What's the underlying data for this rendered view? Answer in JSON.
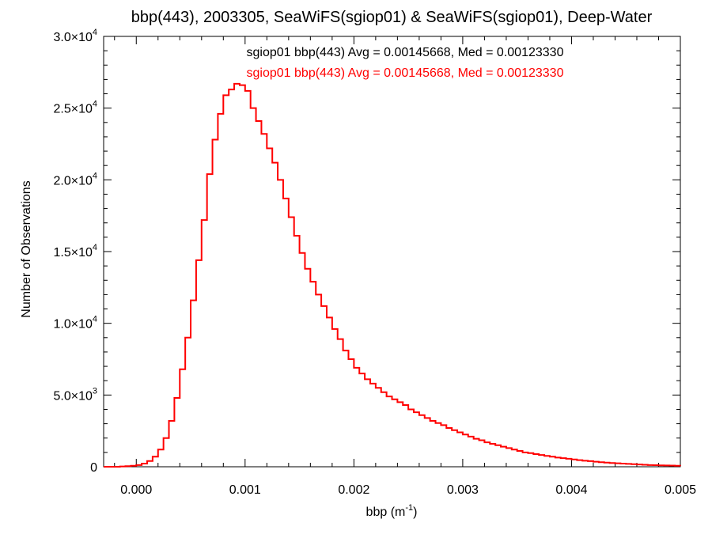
{
  "chart_data": {
    "type": "histogram-step",
    "title": "bbp(443), 2003305, SeaWiFS(sgiop01) & SeaWiFS(sgiop01), Deep-Water",
    "xlabel": {
      "main": "bbp (m",
      "superscript": "-1",
      "close": ")"
    },
    "ylabel": "Number of Observations",
    "xlim": [
      -0.0003,
      0.005
    ],
    "ylim": [
      0,
      30000
    ],
    "x_ticks": [
      {
        "value": 0.0,
        "label": "0.000"
      },
      {
        "value": 0.001,
        "label": "0.001"
      },
      {
        "value": 0.002,
        "label": "0.002"
      },
      {
        "value": 0.003,
        "label": "0.003"
      },
      {
        "value": 0.004,
        "label": "0.004"
      },
      {
        "value": 0.005,
        "label": "0.005"
      }
    ],
    "y_ticks": [
      {
        "value": 0,
        "mantissa": "0",
        "exponent": ""
      },
      {
        "value": 5000,
        "mantissa": "5.0×10",
        "exponent": "3"
      },
      {
        "value": 10000,
        "mantissa": "1.0×10",
        "exponent": "4"
      },
      {
        "value": 15000,
        "mantissa": "1.5×10",
        "exponent": "4"
      },
      {
        "value": 20000,
        "mantissa": "2.0×10",
        "exponent": "4"
      },
      {
        "value": 25000,
        "mantissa": "2.5×10",
        "exponent": "4"
      },
      {
        "value": 30000,
        "mantissa": "3.0×10",
        "exponent": "4"
      }
    ],
    "annotations": [
      {
        "text": "sgiop01 bbp(443) Avg = 0.00145668, Med = 0.00123330",
        "color": "#000000"
      },
      {
        "text": "sgiop01 bbp(443) Avg = 0.00145668, Med = 0.00123330",
        "color": "#ff0000"
      }
    ],
    "series": [
      {
        "color": "#ff0000",
        "points": [
          [
            -0.0003,
            0
          ],
          [
            -0.00025,
            0
          ],
          [
            -0.0002,
            0
          ],
          [
            -0.00015,
            20
          ],
          [
            -0.0001,
            40
          ],
          [
            -5e-05,
            70
          ],
          [
            0.0,
            120
          ],
          [
            5e-05,
            220
          ],
          [
            0.0001,
            400
          ],
          [
            0.00015,
            700
          ],
          [
            0.0002,
            1200
          ],
          [
            0.00025,
            2000
          ],
          [
            0.0003,
            3200
          ],
          [
            0.00035,
            4800
          ],
          [
            0.0004,
            6800
          ],
          [
            0.00045,
            9000
          ],
          [
            0.0005,
            11600
          ],
          [
            0.00055,
            14400
          ],
          [
            0.0006,
            17200
          ],
          [
            0.00065,
            20400
          ],
          [
            0.0007,
            22800
          ],
          [
            0.00075,
            24600
          ],
          [
            0.0008,
            25900
          ],
          [
            0.00085,
            26300
          ],
          [
            0.0009,
            26700
          ],
          [
            0.00095,
            26600
          ],
          [
            0.001,
            26200
          ],
          [
            0.00105,
            25000
          ],
          [
            0.0011,
            24100
          ],
          [
            0.00115,
            23200
          ],
          [
            0.0012,
            22200
          ],
          [
            0.00125,
            21200
          ],
          [
            0.0013,
            20000
          ],
          [
            0.00135,
            18700
          ],
          [
            0.0014,
            17400
          ],
          [
            0.00145,
            16100
          ],
          [
            0.0015,
            14900
          ],
          [
            0.00155,
            13800
          ],
          [
            0.0016,
            12900
          ],
          [
            0.00165,
            12000
          ],
          [
            0.0017,
            11200
          ],
          [
            0.00175,
            10400
          ],
          [
            0.0018,
            9600
          ],
          [
            0.00185,
            8900
          ],
          [
            0.0019,
            8100
          ],
          [
            0.00195,
            7500
          ],
          [
            0.002,
            6900
          ],
          [
            0.00205,
            6500
          ],
          [
            0.0021,
            6100
          ],
          [
            0.00215,
            5800
          ],
          [
            0.0022,
            5500
          ],
          [
            0.00225,
            5200
          ],
          [
            0.0023,
            4900
          ],
          [
            0.00235,
            4700
          ],
          [
            0.0024,
            4500
          ],
          [
            0.00245,
            4300
          ],
          [
            0.0025,
            4000
          ],
          [
            0.00255,
            3800
          ],
          [
            0.0026,
            3600
          ],
          [
            0.00265,
            3400
          ],
          [
            0.0027,
            3200
          ],
          [
            0.00275,
            3050
          ],
          [
            0.0028,
            2900
          ],
          [
            0.00285,
            2700
          ],
          [
            0.0029,
            2550
          ],
          [
            0.00295,
            2400
          ],
          [
            0.003,
            2250
          ],
          [
            0.00305,
            2100
          ],
          [
            0.0031,
            1950
          ],
          [
            0.00315,
            1850
          ],
          [
            0.0032,
            1700
          ],
          [
            0.00325,
            1600
          ],
          [
            0.0033,
            1500
          ],
          [
            0.00335,
            1400
          ],
          [
            0.0034,
            1300
          ],
          [
            0.00345,
            1200
          ],
          [
            0.0035,
            1100
          ],
          [
            0.00355,
            1000
          ],
          [
            0.0036,
            950
          ],
          [
            0.00365,
            880
          ],
          [
            0.0037,
            820
          ],
          [
            0.00375,
            760
          ],
          [
            0.0038,
            700
          ],
          [
            0.00385,
            640
          ],
          [
            0.0039,
            600
          ],
          [
            0.00395,
            560
          ],
          [
            0.004,
            510
          ],
          [
            0.00405,
            460
          ],
          [
            0.0041,
            420
          ],
          [
            0.00415,
            390
          ],
          [
            0.0042,
            350
          ],
          [
            0.00425,
            320
          ],
          [
            0.0043,
            290
          ],
          [
            0.00435,
            260
          ],
          [
            0.0044,
            240
          ],
          [
            0.00445,
            220
          ],
          [
            0.0045,
            200
          ],
          [
            0.00455,
            180
          ],
          [
            0.0046,
            160
          ],
          [
            0.00465,
            140
          ],
          [
            0.0047,
            120
          ],
          [
            0.00475,
            110
          ],
          [
            0.0048,
            100
          ],
          [
            0.00485,
            90
          ],
          [
            0.0049,
            80
          ],
          [
            0.00495,
            70
          ],
          [
            0.005,
            60
          ]
        ]
      }
    ]
  }
}
